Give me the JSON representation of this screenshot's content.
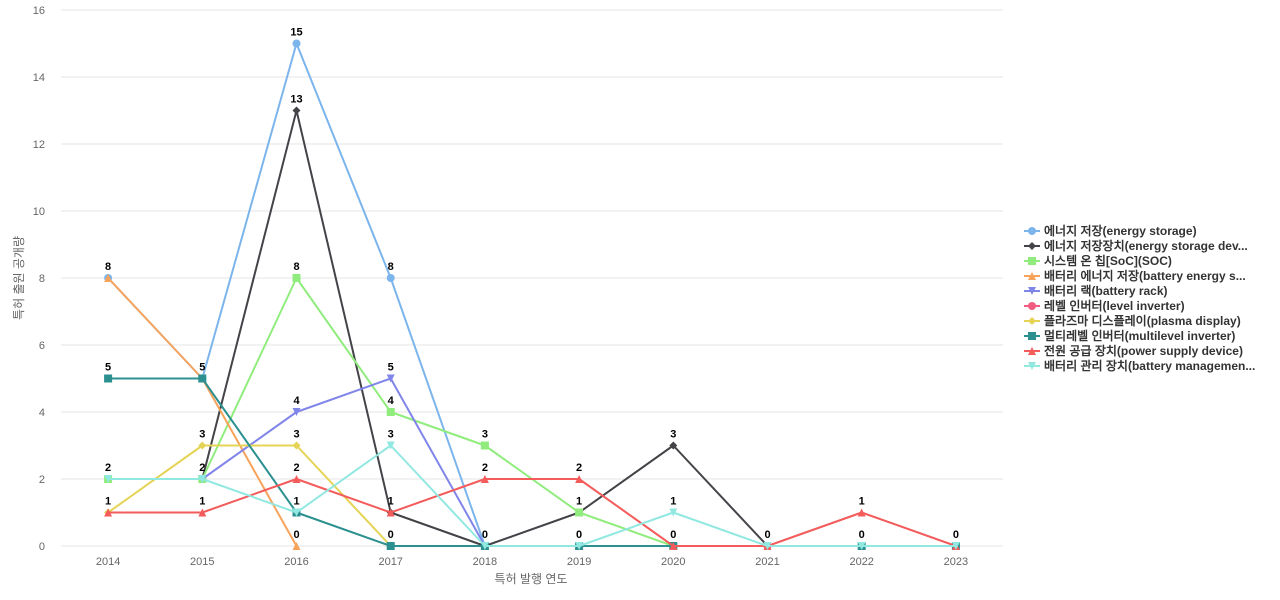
{
  "chart_data": {
    "type": "line",
    "title": "",
    "xlabel": "특허 발행 연도",
    "ylabel": "특허 출원 공개량",
    "x": [
      "2014",
      "2015",
      "2016",
      "2017",
      "2018",
      "2019",
      "2020",
      "2021",
      "2022",
      "2023"
    ],
    "ylim": [
      0,
      16
    ],
    "yticks": [
      0,
      2,
      4,
      6,
      8,
      10,
      12,
      14,
      16
    ],
    "grid": true,
    "legend_position": "right",
    "series": [
      {
        "name": "에너지 저장(energy storage)",
        "color": "#7cb5ec",
        "marker": "circle",
        "values": [
          8,
          5,
          15,
          8,
          0,
          null,
          null,
          null,
          null,
          null
        ],
        "labels": [
          8,
          5,
          15,
          8,
          null,
          null,
          null,
          null,
          null,
          null
        ]
      },
      {
        "name": "에너지 저장장치(energy storage dev...",
        "color": "#434348",
        "marker": "diamond",
        "values": [
          null,
          2,
          13,
          1,
          0,
          1,
          3,
          0,
          null,
          null
        ],
        "labels": [
          null,
          2,
          13,
          1,
          null,
          null,
          3,
          null,
          null,
          null
        ]
      },
      {
        "name": "시스템 온 칩[SoC](SOC)",
        "color": "#90ed7d",
        "marker": "square",
        "values": [
          2,
          2,
          8,
          4,
          3,
          1,
          0,
          null,
          null,
          null
        ],
        "labels": [
          2,
          null,
          8,
          4,
          3,
          1,
          null,
          null,
          null,
          null
        ]
      },
      {
        "name": "배터리 에너지 저장(battery energy s...",
        "color": "#f7a35c",
        "marker": "triangle",
        "values": [
          8,
          5,
          0,
          null,
          null,
          null,
          null,
          null,
          null,
          null
        ],
        "labels": [
          null,
          null,
          0,
          null,
          null,
          null,
          null,
          null,
          null,
          null
        ]
      },
      {
        "name": "배터리 랙(battery rack)",
        "color": "#8085e9",
        "marker": "triangle-down",
        "values": [
          null,
          2,
          4,
          5,
          0,
          null,
          null,
          null,
          null,
          null
        ],
        "labels": [
          null,
          null,
          4,
          5,
          null,
          null,
          null,
          null,
          null,
          null
        ]
      },
      {
        "name": "레벨 인버터(level inverter)",
        "color": "#f15c80",
        "marker": "circle",
        "values": [
          null,
          null,
          null,
          null,
          null,
          null,
          0,
          0,
          null,
          null
        ],
        "labels": [
          null,
          null,
          null,
          null,
          null,
          null,
          null,
          null,
          null,
          null
        ]
      },
      {
        "name": "플라즈마 디스플레이(plasma display)",
        "color": "#e4d354",
        "marker": "diamond",
        "values": [
          1,
          3,
          3,
          0,
          null,
          null,
          null,
          null,
          null,
          null
        ],
        "labels": [
          null,
          3,
          3,
          0,
          null,
          null,
          null,
          null,
          null,
          null
        ]
      },
      {
        "name": "멀티레벨 인버터(multilevel inverter)",
        "color": "#2b908f",
        "marker": "square",
        "values": [
          5,
          5,
          1,
          0,
          0,
          0,
          0,
          null,
          0,
          0
        ],
        "labels": [
          5,
          null,
          null,
          null,
          null,
          null,
          null,
          null,
          null,
          null
        ]
      },
      {
        "name": "전원 공급 장치(power supply device)",
        "color": "#f45b5b",
        "marker": "triangle",
        "values": [
          1,
          1,
          2,
          1,
          2,
          2,
          0,
          0,
          1,
          0
        ],
        "labels": [
          1,
          1,
          2,
          null,
          2,
          2,
          0,
          0,
          1,
          0
        ]
      },
      {
        "name": "배터리 관리 장치(battery managemen...",
        "color": "#91e8e1",
        "marker": "triangle-down",
        "values": [
          2,
          2,
          1,
          3,
          0,
          0,
          1,
          0,
          0,
          0
        ],
        "labels": [
          null,
          null,
          1,
          3,
          0,
          0,
          1,
          null,
          0,
          null
        ]
      }
    ]
  }
}
